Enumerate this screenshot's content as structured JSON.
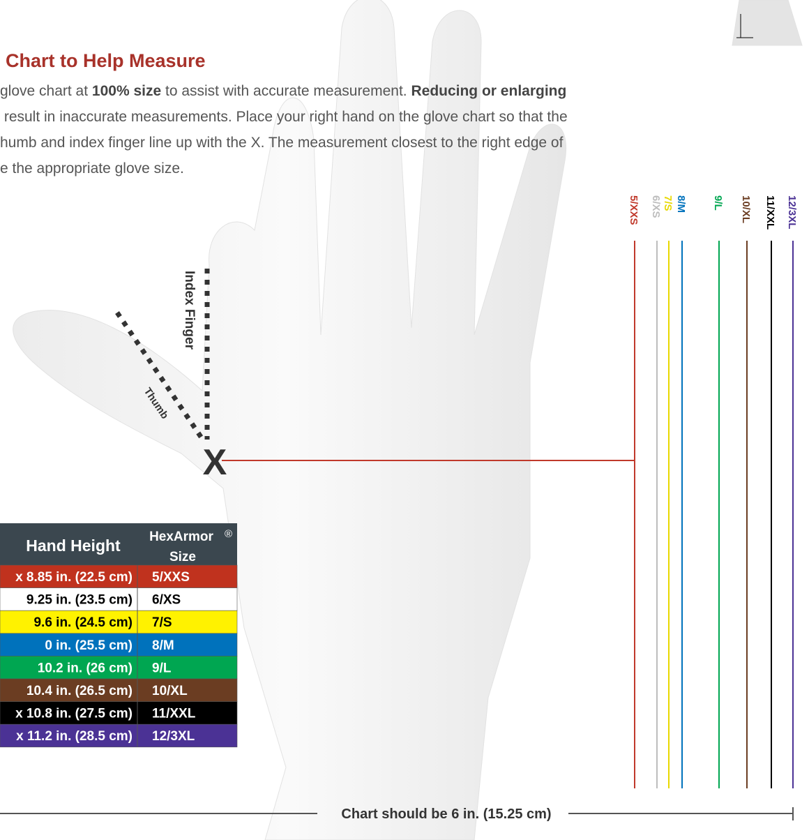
{
  "heading": "Chart to Help Measure",
  "paragraph": [
    [
      {
        "text": "glove chart at "
      },
      {
        "text": "100% size",
        "bold": true
      },
      {
        "text": " to assist with accurate measurement. "
      },
      {
        "text": "Reducing or enlarging",
        "bold": true
      }
    ],
    [
      {
        "text": " result in inaccurate measurements. Place your right hand on the glove chart so that the"
      }
    ],
    [
      {
        "text": "humb and index finger line up with the X. The measurement closest to the right edge of"
      }
    ],
    [
      {
        "text": "e the appropriate glove size."
      }
    ]
  ],
  "guides": {
    "index": "Index Finger",
    "thumb": "Thumb",
    "mark": "X"
  },
  "size_lines": [
    {
      "label": "5/XXS",
      "color": "#c0392b"
    },
    {
      "label": "6/XS",
      "color": "#bdbdbd"
    },
    {
      "label": "7/S",
      "color": "#e8d800"
    },
    {
      "label": "8/M",
      "color": "#0072bc"
    },
    {
      "label": "9/L",
      "color": "#00a651"
    },
    {
      "label": "10/XL",
      "color": "#6b3d22"
    },
    {
      "label": "11/XXL",
      "color": "#000000"
    },
    {
      "label": "12/3XL",
      "color": "#4b3295"
    }
  ],
  "table": {
    "header": {
      "height": "Hand Height",
      "brand": "HexArmor",
      "reg": "®",
      "size": "Size"
    },
    "rows": [
      {
        "height": "x 8.85 in. (22.5 cm)",
        "size": "5/XXS",
        "color": "#c0321e",
        "text_color": "#ffffff"
      },
      {
        "height": "9.25 in. (23.5 cm)",
        "size": "6/XS",
        "color": "#ffffff",
        "text_color": "#000000"
      },
      {
        "height": "9.6 in. (24.5 cm)",
        "size": "7/S",
        "color": "#fff200",
        "text_color": "#000000"
      },
      {
        "height": "0 in. (25.5 cm)",
        "size": "8/M",
        "color": "#0072bc",
        "text_color": "#ffffff"
      },
      {
        "height": "10.2 in. (26 cm)",
        "size": "9/L",
        "color": "#00a651",
        "text_color": "#ffffff"
      },
      {
        "height": "10.4 in. (26.5 cm)",
        "size": "10/XL",
        "color": "#6b3d22",
        "text_color": "#ffffff"
      },
      {
        "height": "x 10.8 in. (27.5 cm)",
        "size": "11/XXL",
        "color": "#000000",
        "text_color": "#ffffff"
      },
      {
        "height": "x 11.2 in. (28.5 cm)",
        "size": "12/3XL",
        "color": "#4b3295",
        "text_color": "#ffffff"
      }
    ]
  },
  "footer": "Chart should be 6 in. (15.25 cm)"
}
